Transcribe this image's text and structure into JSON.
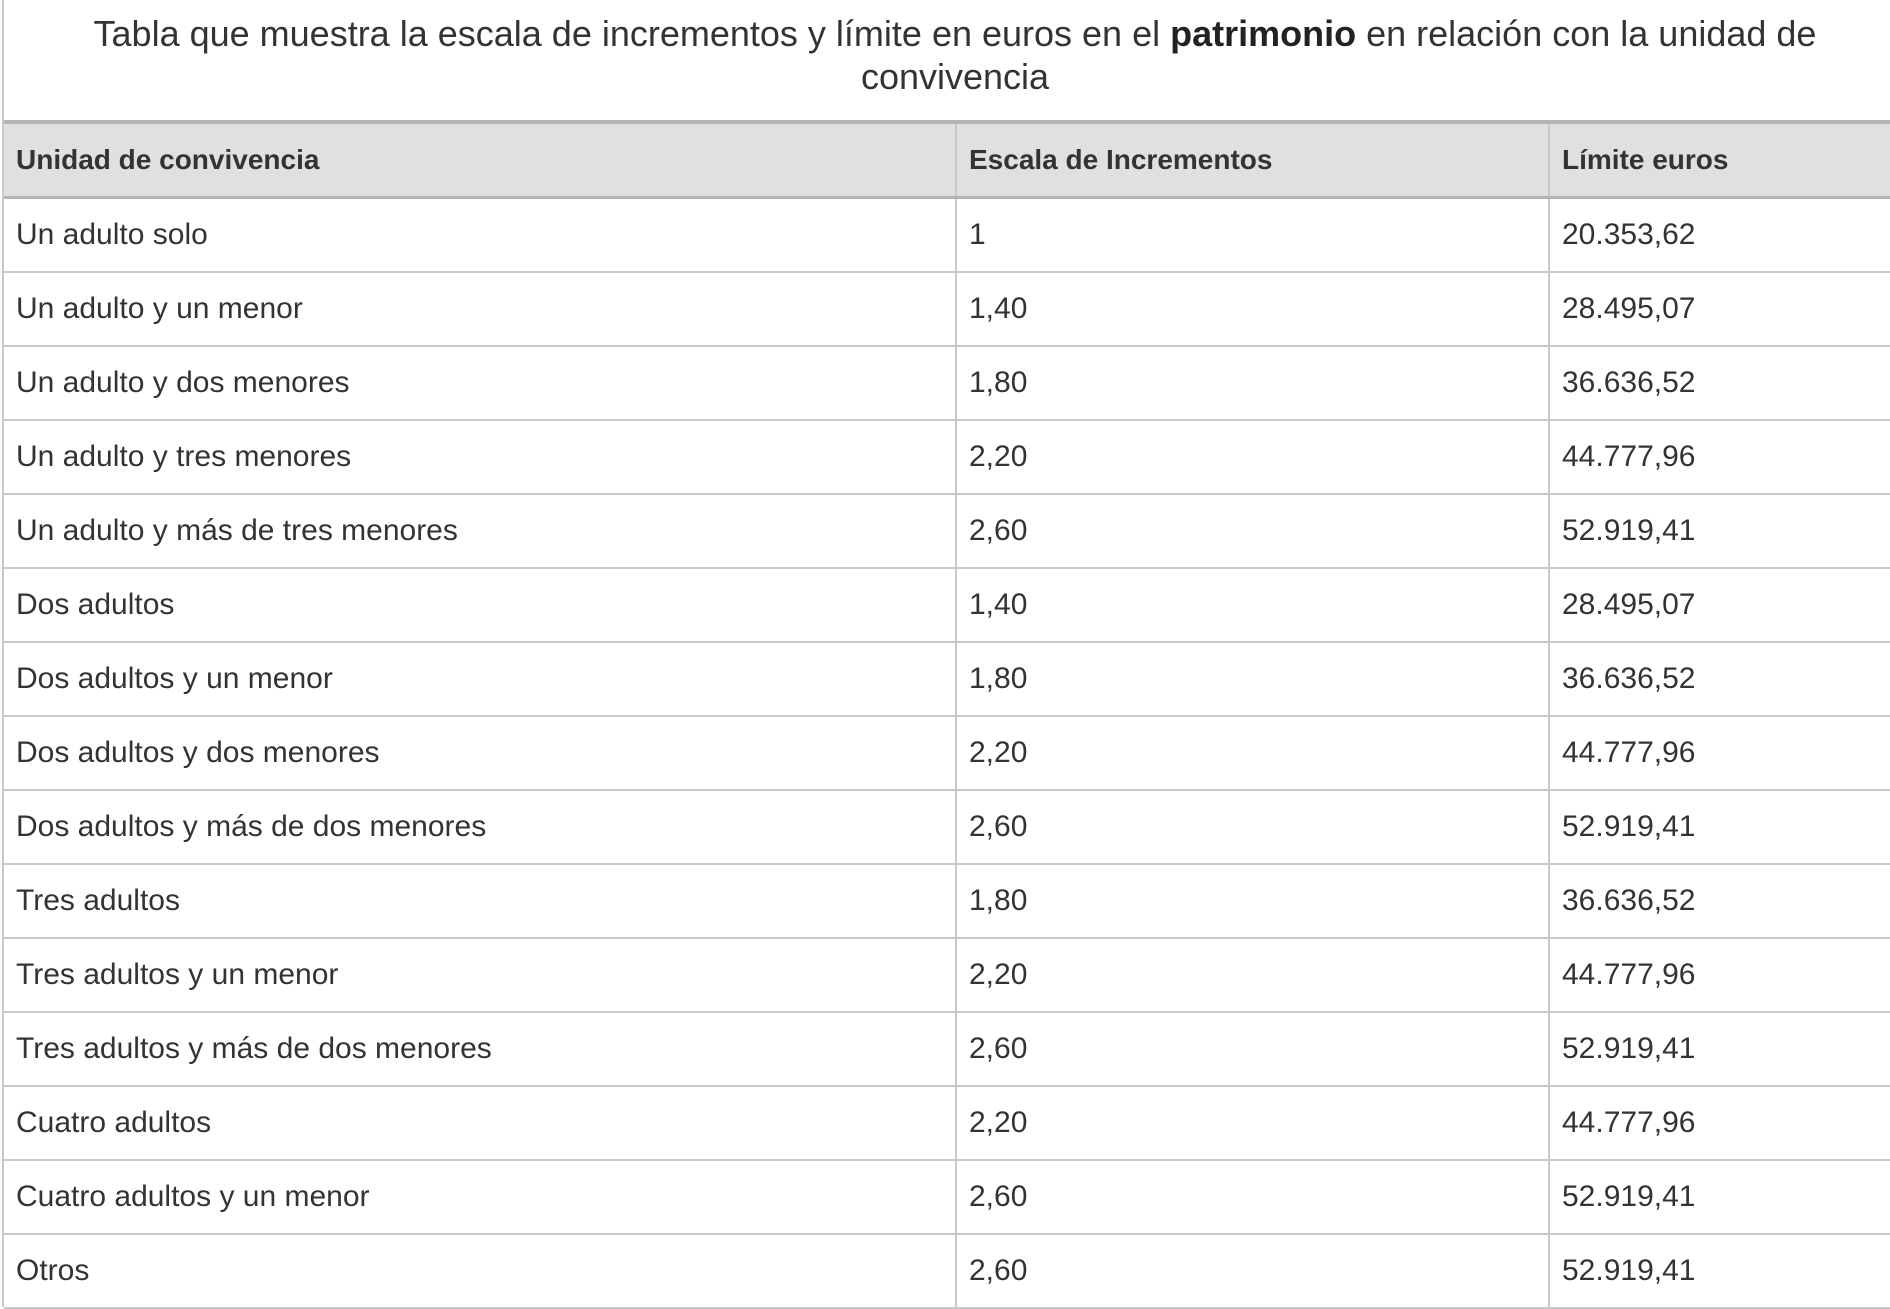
{
  "caption": {
    "before": "Tabla que muestra la escala de incrementos y límite en euros en el ",
    "bold": "patrimonio",
    "after": " en relación con la unidad de convivencia"
  },
  "table": {
    "headers": [
      "Unidad de convivencia",
      "Escala de Incrementos",
      "Límite euros"
    ],
    "rows": [
      [
        "Un adulto solo",
        "1",
        "20.353,62"
      ],
      [
        "Un adulto y un menor",
        "1,40",
        "28.495,07"
      ],
      [
        "Un adulto y dos menores",
        "1,80",
        "36.636,52"
      ],
      [
        "Un adulto y tres menores",
        "2,20",
        "44.777,96"
      ],
      [
        "Un adulto y más de tres menores",
        "2,60",
        "52.919,41"
      ],
      [
        "Dos adultos",
        "1,40",
        "28.495,07"
      ],
      [
        "Dos adultos y un menor",
        "1,80",
        "36.636,52"
      ],
      [
        "Dos adultos y dos menores",
        "2,20",
        "44.777,96"
      ],
      [
        "Dos adultos y más de dos menores",
        "2,60",
        "52.919,41"
      ],
      [
        "Tres adultos",
        "1,80",
        "36.636,52"
      ],
      [
        "Tres adultos y un menor",
        "2,20",
        "44.777,96"
      ],
      [
        "Tres adultos y más de dos menores",
        "2,60",
        "52.919,41"
      ],
      [
        "Cuatro adultos",
        "2,20",
        "44.777,96"
      ],
      [
        "Cuatro adultos y un menor",
        "2,60",
        "52.919,41"
      ],
      [
        "Otros",
        "2,60",
        "52.919,41"
      ]
    ]
  }
}
